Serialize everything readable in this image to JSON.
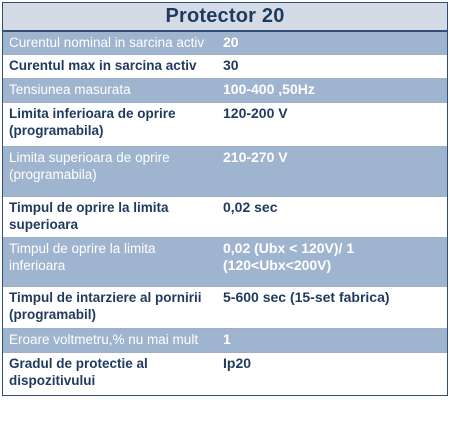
{
  "table": {
    "title": "Protector 20",
    "rows": [
      {
        "label": "Curentul nominal in sarcina activ",
        "value": [
          "20"
        ]
      },
      {
        "label": "Curentul max in sarcina activ",
        "value": [
          "30"
        ]
      },
      {
        "label": "Tensiunea masurata",
        "value": [
          "100-400 ,50Hz"
        ]
      },
      {
        "label": "Limita inferioara de oprire (programabila)",
        "value": [
          "120-200 V"
        ]
      },
      {
        "label": "Limita superioara de oprire (programabila)",
        "value": [
          "210-270 V"
        ]
      },
      {
        "label": "Timpul de oprire la limita superioara",
        "value": [
          "0,02 sec"
        ]
      },
      {
        "label": "Timpul de oprire la limita inferioara",
        "value": [
          "0,02 (Ubx < 120V)/ 1",
          "(120<Ubx<200V)"
        ]
      },
      {
        "label": "Timpul de intarziere al pornirii (programabil)",
        "value": [
          "5-600 sec (15-set fabrica)"
        ]
      },
      {
        "label": "Eroare voltmetru,% nu mai mult",
        "value": [
          "1"
        ]
      },
      {
        "label": "Gradul de protectie al dispozitivului",
        "value": [
          "Ip20"
        ]
      }
    ]
  }
}
